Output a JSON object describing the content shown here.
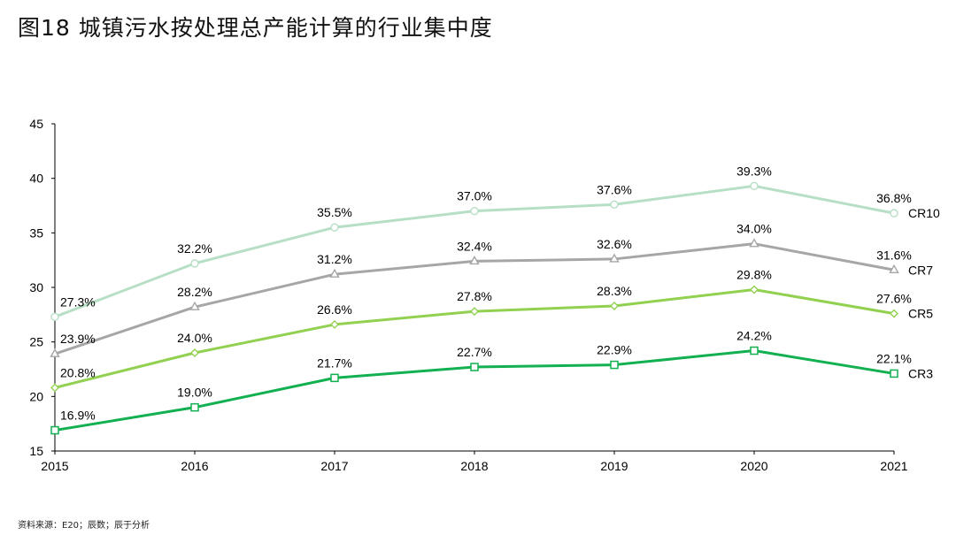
{
  "title": "图18 城镇污水按处理总产能计算的行业集中度",
  "source": "资料来源：E20；辰数；辰于分析",
  "chart_data": {
    "type": "line",
    "x": [
      2015,
      2016,
      2017,
      2018,
      2019,
      2020,
      2021
    ],
    "ylim": [
      15,
      45
    ],
    "yticks": [
      15,
      20,
      25,
      30,
      35,
      40,
      45
    ],
    "series": [
      {
        "name": "CR10",
        "values": [
          27.3,
          32.2,
          35.5,
          37.0,
          37.6,
          39.3,
          36.8
        ],
        "labels": [
          "27.3%",
          "32.2%",
          "35.5%",
          "37.0%",
          "37.6%",
          "39.3%",
          "36.8%"
        ],
        "color": "#b7dfc6",
        "marker": "circle"
      },
      {
        "name": "CR7",
        "values": [
          23.9,
          28.2,
          31.2,
          32.4,
          32.6,
          34.0,
          31.6
        ],
        "labels": [
          "23.9%",
          "28.2%",
          "31.2%",
          "32.4%",
          "32.6%",
          "34.0%",
          "31.6%"
        ],
        "color": "#a6a6a6",
        "marker": "triangle"
      },
      {
        "name": "CR5",
        "values": [
          20.8,
          24.0,
          26.6,
          27.8,
          28.3,
          29.8,
          27.6
        ],
        "labels": [
          "20.8%",
          "24.0%",
          "26.6%",
          "27.8%",
          "28.3%",
          "29.8%",
          "27.6%"
        ],
        "color": "#92d050",
        "marker": "diamond"
      },
      {
        "name": "CR3",
        "values": [
          16.9,
          19.0,
          21.7,
          22.7,
          22.9,
          24.2,
          22.1
        ],
        "labels": [
          "16.9%",
          "19.0%",
          "21.7%",
          "22.7%",
          "22.9%",
          "24.2%",
          "22.1%"
        ],
        "color": "#12b050",
        "marker": "square"
      }
    ],
    "legend": "right-end-labels",
    "grid": false
  }
}
